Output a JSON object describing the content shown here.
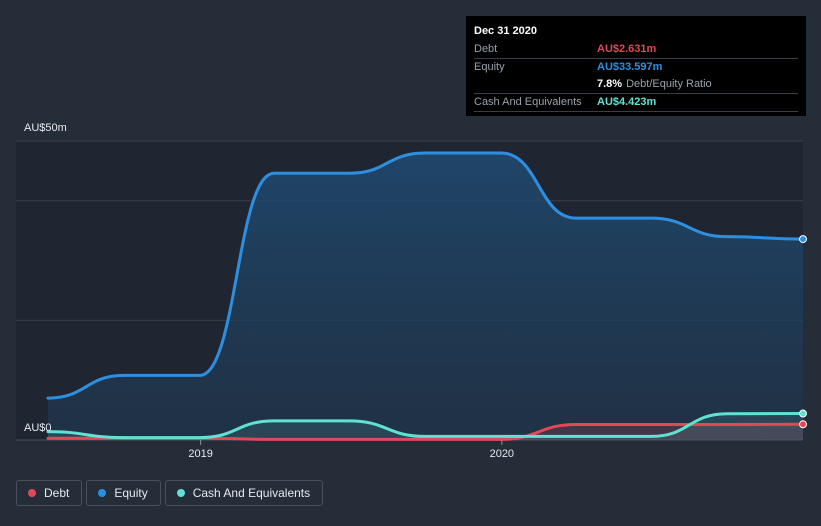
{
  "chart_data": {
    "type": "area",
    "currency_prefix": "AU$",
    "y_axis": {
      "top_label": "AU$50m",
      "bottom_label": "AU$0",
      "ylim": [
        0,
        50
      ]
    },
    "x_ticks": [
      "2019",
      "2020"
    ],
    "series": [
      {
        "name": "Debt",
        "color": "#e3475a",
        "points": [
          [
            "2018-06-30",
            0.3
          ],
          [
            "2018-12-31",
            0.3
          ],
          [
            "2019-03-31",
            0.1
          ],
          [
            "2019-06-30",
            0.1
          ],
          [
            "2019-09-30",
            0.1
          ],
          [
            "2019-12-31",
            0.1
          ],
          [
            "2020-03-31",
            2.6
          ],
          [
            "2020-06-30",
            2.6
          ],
          [
            "2020-09-30",
            2.6
          ],
          [
            "2020-12-31",
            2.631
          ]
        ]
      },
      {
        "name": "Equity",
        "color": "#2e8fe0",
        "points": [
          [
            "2018-06-30",
            7.0
          ],
          [
            "2018-09-30",
            10.8
          ],
          [
            "2018-12-31",
            10.8
          ],
          [
            "2019-03-31",
            44.6
          ],
          [
            "2019-06-30",
            44.6
          ],
          [
            "2019-09-30",
            48.0
          ],
          [
            "2019-12-31",
            48.0
          ],
          [
            "2020-03-31",
            37.1
          ],
          [
            "2020-06-30",
            37.1
          ],
          [
            "2020-09-30",
            34.0
          ],
          [
            "2020-12-31",
            33.597
          ]
        ]
      },
      {
        "name": "Cash And Equivalents",
        "color": "#5fe2d2",
        "points": [
          [
            "2018-06-30",
            1.4
          ],
          [
            "2018-09-30",
            0.4
          ],
          [
            "2018-12-31",
            0.4
          ],
          [
            "2019-03-31",
            3.2
          ],
          [
            "2019-06-30",
            3.2
          ],
          [
            "2019-09-30",
            0.6
          ],
          [
            "2019-12-31",
            0.6
          ],
          [
            "2020-03-31",
            0.6
          ],
          [
            "2020-06-30",
            0.6
          ],
          [
            "2020-09-30",
            4.4
          ],
          [
            "2020-12-31",
            4.423
          ]
        ]
      }
    ],
    "legend": [
      "Debt",
      "Equity",
      "Cash And Equivalents"
    ],
    "grid": true
  },
  "tooltip": {
    "date": "Dec 31 2020",
    "rows": {
      "debt": {
        "label": "Debt",
        "value": "AU$2.631m"
      },
      "equity": {
        "label": "Equity",
        "value": "AU$33.597m"
      },
      "ratio": {
        "value": "7.8%",
        "label": "Debt/Equity Ratio"
      },
      "cash": {
        "label": "Cash And Equivalents",
        "value": "AU$4.423m"
      }
    }
  },
  "legend": {
    "debt": "Debt",
    "equity": "Equity",
    "cash": "Cash And Equivalents"
  },
  "colors": {
    "debt": "#e3475a",
    "equity": "#2e8fe0",
    "cash": "#5fe2d2",
    "background": "#252d39"
  }
}
